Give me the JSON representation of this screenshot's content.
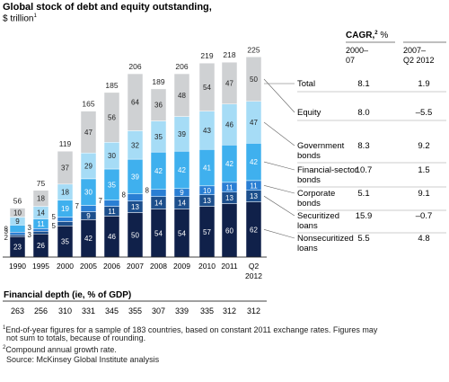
{
  "header": {
    "title": "Global stock of debt and equity outstanding,",
    "subtitle_unit": "$ trillion",
    "subtitle_sup": "1"
  },
  "cagr": {
    "title": "CAGR,",
    "title_sup": "2",
    "title_unit": " %",
    "col1_line1": "2000–",
    "col1_line2": "07",
    "col2_line1": "2007–",
    "col2_line2": "Q2 2012"
  },
  "depth": {
    "label": "Financial depth (ie, % of GDP)",
    "values": [
      "263",
      "256",
      "310",
      "331",
      "345",
      "355",
      "307",
      "339",
      "335",
      "312",
      "312"
    ]
  },
  "footnotes": {
    "fn1_sup": "1",
    "fn1_line1": "End-of-year figures for a sample of 183 countries, based on constant 2011 exchange rates. Figures may",
    "fn1_line2": "not sum to totals, because of rounding.",
    "fn2_sup": "2",
    "fn2": "Compound annual growth rate.",
    "source": "Source: McKinsey Global Institute analysis"
  },
  "colors": {
    "nonsecuritized": "#10214a",
    "securitized": "#1d4f8c",
    "corporate": "#2a7fd4",
    "financial": "#3fb0ee",
    "government": "#a6dcf6",
    "equity": "#cfd1d3",
    "label_light": "#ffffff",
    "label_dark": "#222222"
  },
  "chart_data": {
    "type": "bar",
    "stacked": true,
    "title": "Global stock of debt and equity outstanding,",
    "ylabel": "$ trillion",
    "categories": [
      "1990",
      "1995",
      "2000",
      "2005",
      "2006",
      "2007",
      "2008",
      "2009",
      "2010",
      "2011",
      "Q2 2012"
    ],
    "series": [
      {
        "name": "Nonsecuritized loans",
        "values": [
          23,
          26,
          35,
          42,
          46,
          50,
          54,
          54,
          57,
          60,
          62
        ],
        "cagr_2000_07": "5.5",
        "cagr_2007_q2_2012": "4.8"
      },
      {
        "name": "Securitized loans",
        "values": [
          2,
          3,
          5,
          9,
          11,
          13,
          14,
          14,
          13,
          13,
          13
        ],
        "cagr_2000_07": "15.9",
        "cagr_2007_q2_2012": "–0.7"
      },
      {
        "name": "Corporate bonds",
        "values": [
          3,
          3,
          5,
          7,
          7,
          8,
          8,
          9,
          10,
          11,
          11
        ],
        "cagr_2000_07": "5.1",
        "cagr_2007_q2_2012": "9.1"
      },
      {
        "name": "Financial-sector bonds",
        "values": [
          8,
          11,
          19,
          30,
          35,
          39,
          42,
          42,
          41,
          42,
          42
        ],
        "cagr_2000_07": "10.7",
        "cagr_2007_q2_2012": "1.5"
      },
      {
        "name": "Government bonds",
        "values": [
          9,
          14,
          18,
          29,
          30,
          32,
          35,
          39,
          43,
          46,
          47
        ],
        "cagr_2000_07": "8.3",
        "cagr_2007_q2_2012": "9.2"
      },
      {
        "name": "Equity",
        "values": [
          10,
          18,
          37,
          47,
          56,
          64,
          36,
          48,
          54,
          47,
          50
        ],
        "cagr_2000_07": "8.0",
        "cagr_2007_q2_2012": "–5.5"
      }
    ],
    "totals": [
      56,
      75,
      119,
      165,
      185,
      206,
      189,
      206,
      219,
      218,
      225
    ],
    "total_label": "Total",
    "total_cagr_2000_07": "8.1",
    "total_cagr_2007_q2_2012": "1.9",
    "ylim": [
      0,
      240
    ],
    "grid": false,
    "legend": "right"
  }
}
